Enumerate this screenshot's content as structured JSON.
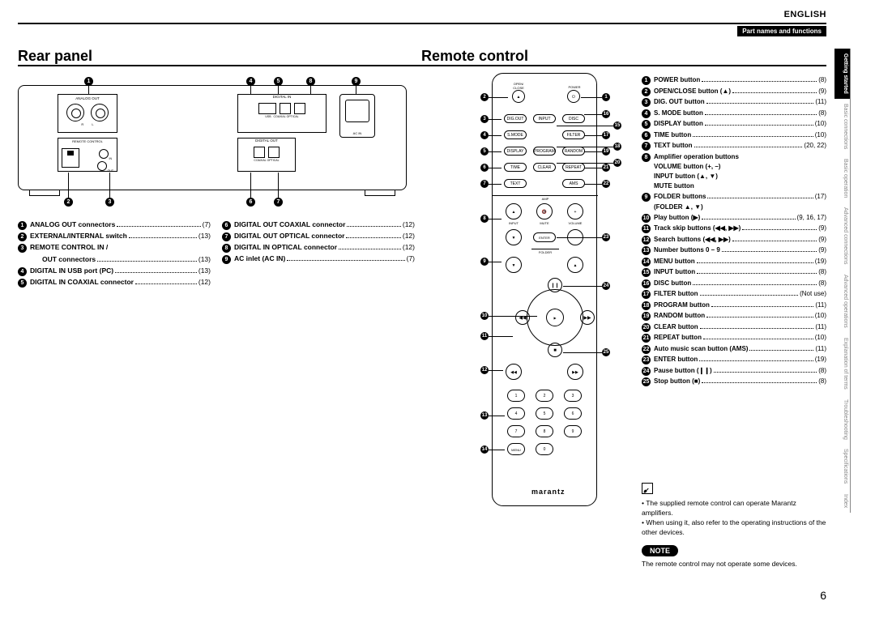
{
  "header": {
    "language": "ENGLISH",
    "section": "Part names and functions",
    "heading_left": "Rear panel",
    "heading_right": "Remote control"
  },
  "rear_diagram": {
    "analog_out": "ANALOG OUT",
    "r": "R",
    "l": "L",
    "remote_control": "REMOTE CONTROL",
    "internal_external": "INTERNAL/\nEXTERNAL",
    "in": "IN",
    "out": "OUT",
    "digital_in": "DIGITAL IN",
    "usb": "USB",
    "coaxial": "COAXIAL",
    "optical": "OPTICAL",
    "digital_out": "DIGITAL OUT",
    "ac_in": "AC IN"
  },
  "rear_list_left": [
    {
      "n": "1",
      "label": "ANALOG OUT connectors",
      "pg": "(7)"
    },
    {
      "n": "2",
      "label": "EXTERNAL/INTERNAL switch",
      "pg": "(13)"
    },
    {
      "n": "3",
      "label": "REMOTE CONTROL IN /",
      "pg": ""
    },
    {
      "n": "",
      "label": "OUT connectors",
      "pg": "(13)",
      "indent": true
    },
    {
      "n": "4",
      "label": "DIGITAL IN USB port (PC)",
      "pg": "(13)"
    },
    {
      "n": "5",
      "label": "DIGITAL IN COAXIAL connector",
      "pg": "(12)"
    }
  ],
  "rear_list_right": [
    {
      "n": "6",
      "label": "DIGITAL OUT COAXIAL connector",
      "pg": "(12)"
    },
    {
      "n": "7",
      "label": "DIGITAL OUT OPTICAL connector",
      "pg": "(12)"
    },
    {
      "n": "8",
      "label": "DIGITAL IN OPTICAL connector",
      "pg": "(12)"
    },
    {
      "n": "9",
      "label": "AC inlet (AC IN)",
      "pg": "(7)"
    }
  ],
  "remote_labels": {
    "open_close": "OPEN/\nCLOSE",
    "power": "POWER",
    "dig_out": "DIG.OUT",
    "input": "INPUT",
    "disc": "DISC",
    "s_mode": "S.MODE",
    "filter": "FILTER",
    "display": "DISPLAY",
    "program": "PROGRAM",
    "random": "RANDOM",
    "time": "TIME",
    "clear": "CLEAR",
    "repeat": "REPEAT",
    "text": "TEXT",
    "ams": "AMS",
    "amp": "AMP",
    "mute": "MUTE",
    "volume": "VOLUME",
    "enter": "ENTER",
    "folder": "FOLDER",
    "menu": "MENU",
    "brand": "marantz"
  },
  "remote_list": [
    {
      "n": "1",
      "label": "POWER button",
      "pg": "(8)"
    },
    {
      "n": "2",
      "label": "OPEN/CLOSE button (▲)",
      "pg": "(9)"
    },
    {
      "n": "3",
      "label": "DIG. OUT button",
      "pg": "(11)"
    },
    {
      "n": "4",
      "label": "S. MODE button",
      "pg": "(8)"
    },
    {
      "n": "5",
      "label": "DISPLAY button",
      "pg": "(10)"
    },
    {
      "n": "6",
      "label": "TIME button",
      "pg": "(10)"
    },
    {
      "n": "7",
      "label": "TEXT button",
      "pg": "(20, 22)"
    },
    {
      "n": "8",
      "label": "Amplifier operation buttons",
      "pg": "",
      "sub": [
        "VOLUME button (+, –)",
        "INPUT button (▲, ▼)",
        "MUTE button"
      ]
    },
    {
      "n": "9",
      "label": "FOLDER buttons",
      "pg": "(17)",
      "sub": [
        "(FOLDER ▲, ▼)"
      ]
    },
    {
      "n": "10",
      "label": "Play button (▶)",
      "pg": "(9, 16, 17)"
    },
    {
      "n": "11",
      "label": "Track skip buttons (◀◀, ▶▶)",
      "pg": "(9)"
    },
    {
      "n": "12",
      "label": "Search buttons (◀◀, ▶▶)",
      "pg": "(9)"
    },
    {
      "n": "13",
      "label": "Number buttons 0 – 9",
      "pg": "(9)"
    },
    {
      "n": "14",
      "label": "MENU button",
      "pg": "(19)"
    },
    {
      "n": "15",
      "label": "INPUT button",
      "pg": "(8)"
    },
    {
      "n": "16",
      "label": "DISC button",
      "pg": "(8)"
    },
    {
      "n": "17",
      "label": "FILTER button",
      "pg": "(Not use)"
    },
    {
      "n": "18",
      "label": "PROGRAM button",
      "pg": "(11)"
    },
    {
      "n": "19",
      "label": "RANDOM button",
      "pg": "(10)"
    },
    {
      "n": "20",
      "label": "CLEAR button",
      "pg": "(11)"
    },
    {
      "n": "21",
      "label": "REPEAT button",
      "pg": "(10)"
    },
    {
      "n": "22",
      "label": "Auto music scan button (AMS)",
      "pg": "(11)"
    },
    {
      "n": "23",
      "label": "ENTER button",
      "pg": "(19)"
    },
    {
      "n": "24",
      "label": "Pause button (❙❙)",
      "pg": "(8)"
    },
    {
      "n": "25",
      "label": "Stop button (■)",
      "pg": "(8)"
    }
  ],
  "notes": {
    "bullets": [
      "The supplied remote control can operate Marantz amplifiers.",
      "When using it, also refer to the operating instructions of the other devices."
    ],
    "badge": "NOTE",
    "text": "The remote control may not operate some devices."
  },
  "tabs": [
    "Getting started",
    "Basic connections",
    "Basic operation",
    "Advanced connections",
    "Advanced operations",
    "Explanation of terms",
    "Troubleshooting",
    "Specifications",
    "Index"
  ],
  "page_number": "6"
}
